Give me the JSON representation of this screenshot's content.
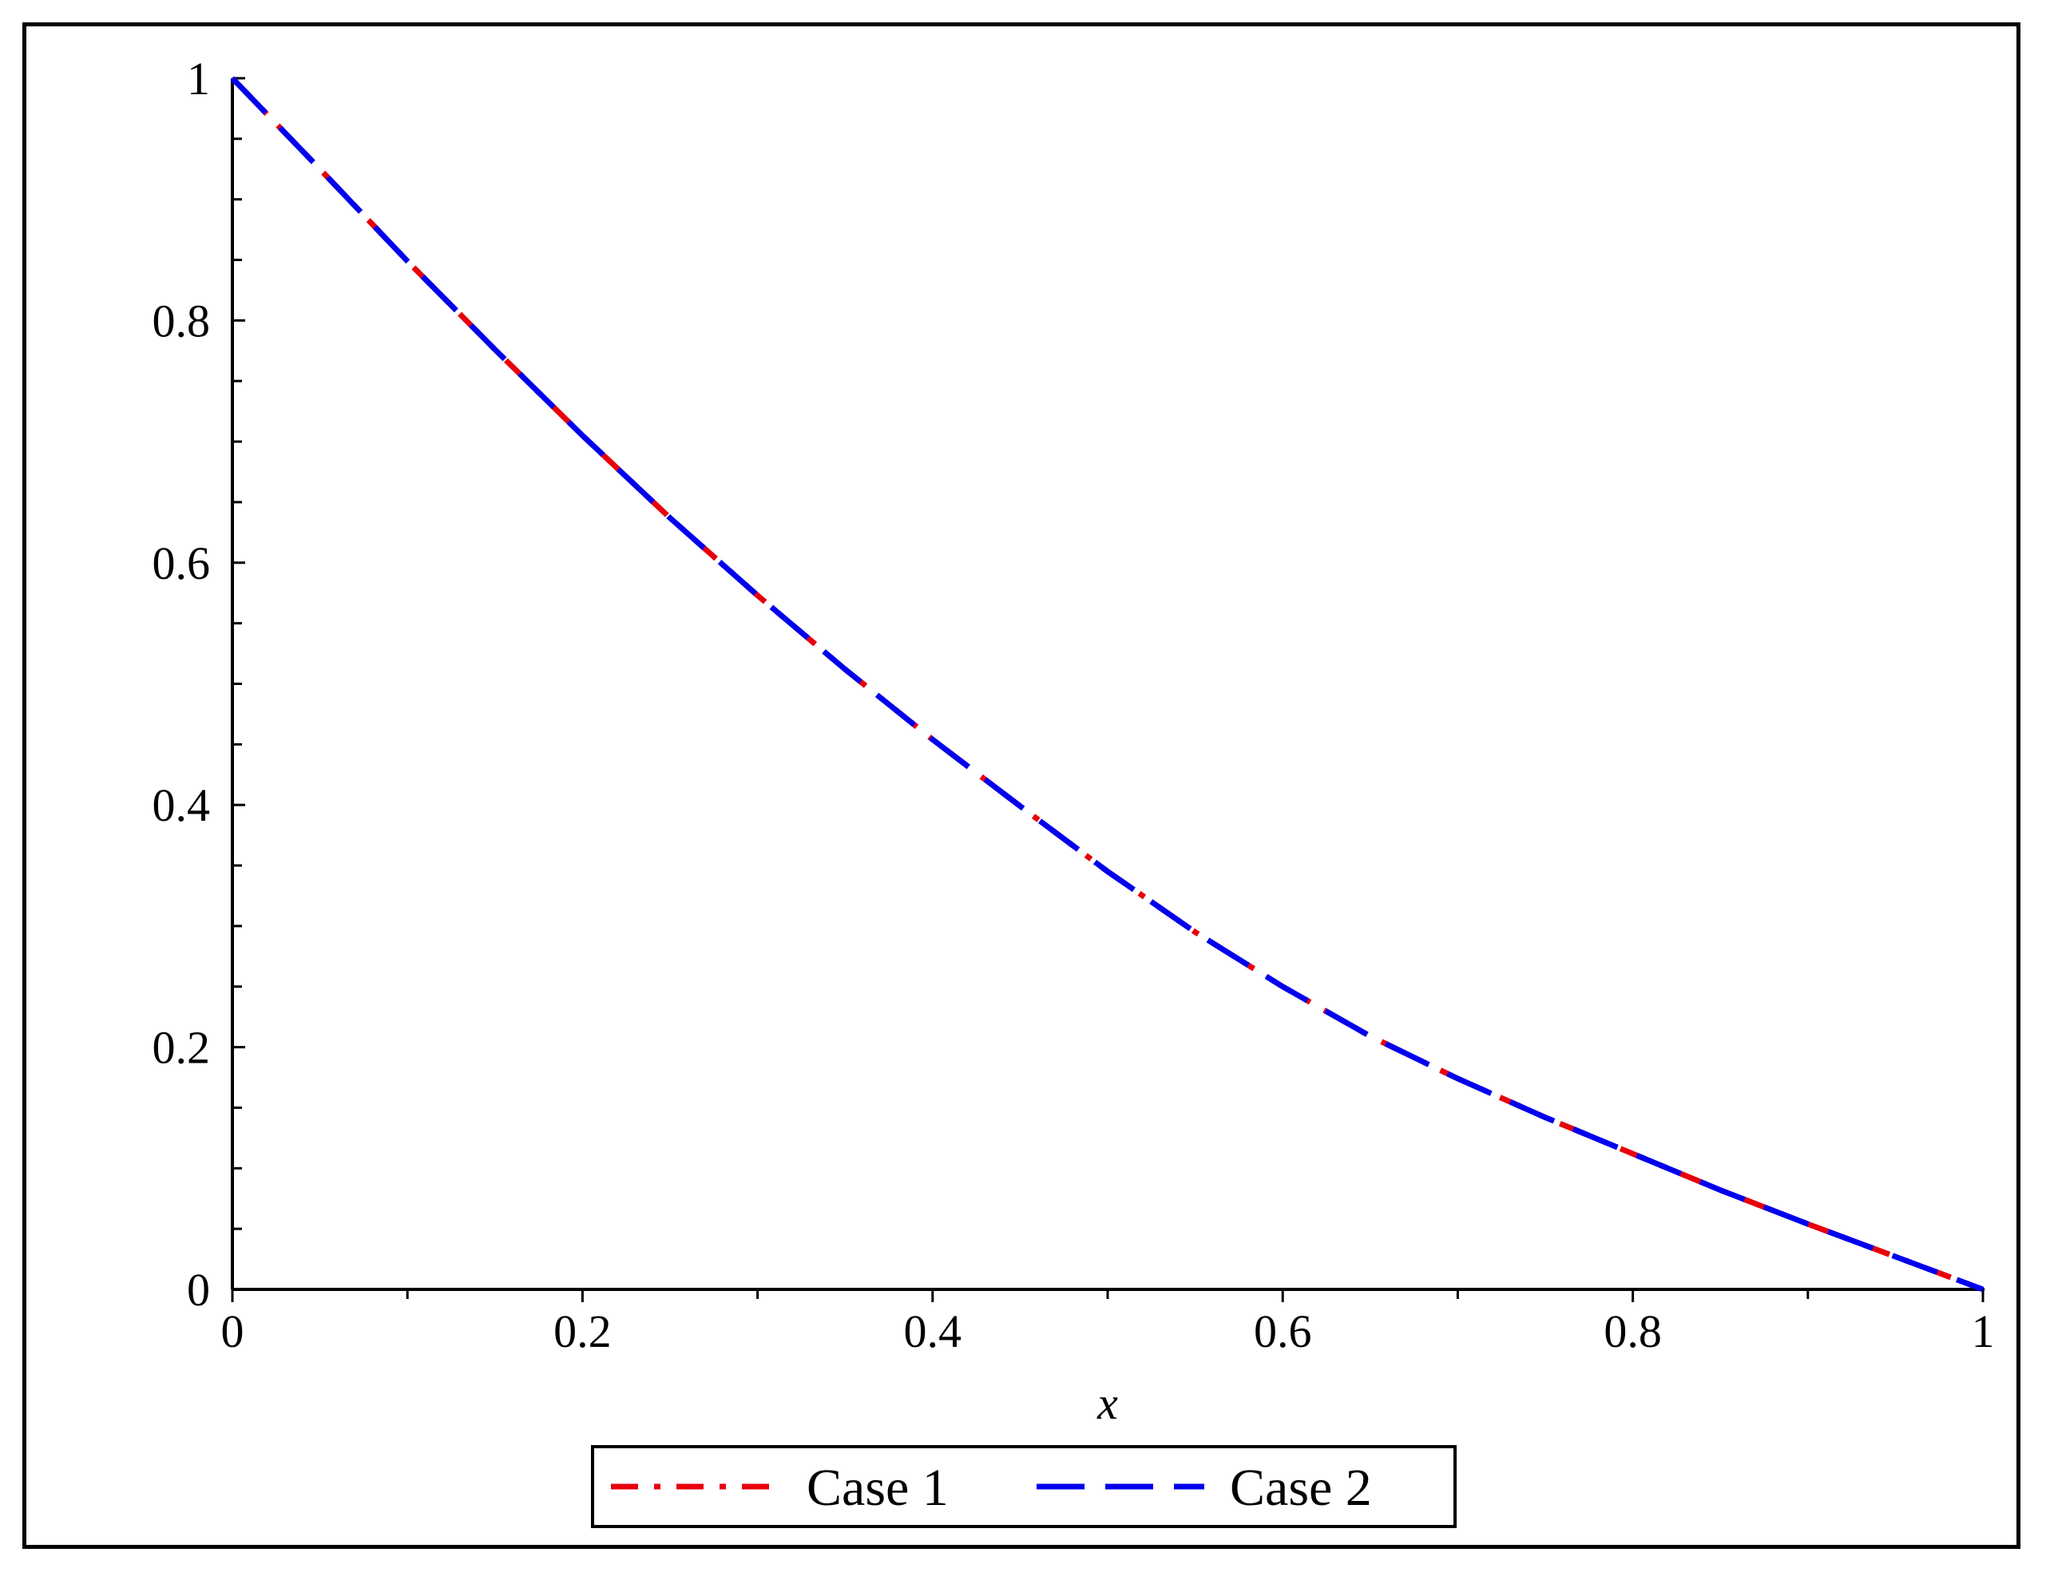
{
  "chart_data": {
    "type": "line",
    "title": "",
    "xlabel": "x",
    "ylabel": "",
    "xlim": [
      0,
      1
    ],
    "ylim": [
      0,
      1
    ],
    "grid": false,
    "legend_position": "bottom",
    "x_ticks": [
      "0",
      "0.2",
      "0.4",
      "0.6",
      "0.8",
      "1"
    ],
    "y_ticks": [
      "0",
      "0.2",
      "0.4",
      "0.6",
      "0.8",
      "1"
    ],
    "x": [
      0,
      0.05,
      0.1,
      0.15,
      0.2,
      0.25,
      0.3,
      0.35,
      0.4,
      0.45,
      0.5,
      0.55,
      0.6,
      0.65,
      0.7,
      0.75,
      0.8,
      0.85,
      0.9,
      0.95,
      1
    ],
    "series": [
      {
        "name": "Case 1",
        "color": "#e8000b",
        "line_style": "dash-dot",
        "values": [
          1.0,
          0.925,
          0.849,
          0.776,
          0.705,
          0.637,
          0.573,
          0.512,
          0.454,
          0.399,
          0.345,
          0.295,
          0.25,
          0.209,
          0.174,
          0.142,
          0.112,
          0.082,
          0.054,
          0.027,
          0.0
        ]
      },
      {
        "name": "Case 2",
        "color": "#0000ee",
        "line_style": "dash",
        "values": [
          1.0,
          0.925,
          0.849,
          0.776,
          0.705,
          0.637,
          0.573,
          0.512,
          0.454,
          0.399,
          0.345,
          0.295,
          0.25,
          0.209,
          0.174,
          0.142,
          0.112,
          0.082,
          0.054,
          0.027,
          0.0
        ]
      }
    ]
  }
}
